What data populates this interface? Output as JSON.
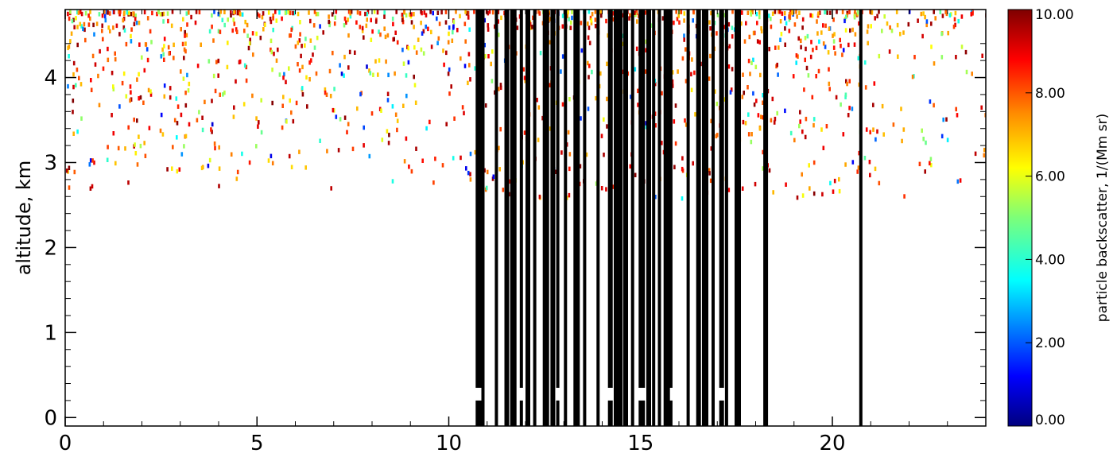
{
  "chart_data": {
    "type": "heatmap",
    "ylabel": "altitude, km",
    "x_ticks": [
      "0",
      "5",
      "10",
      "15",
      "20"
    ],
    "x_tick_values": [
      0,
      5,
      10,
      15,
      20
    ],
    "y_ticks": [
      "0",
      "1",
      "2",
      "3",
      "4"
    ],
    "y_tick_values": [
      0,
      1,
      2,
      3,
      4
    ],
    "xlim": [
      0,
      24
    ],
    "ylim": [
      -0.1,
      4.8
    ],
    "colorbar": {
      "label": "particle backscatter, 1/(Mm sr)",
      "range": [
        0,
        10
      ],
      "tick_values": [
        0,
        2,
        4,
        6,
        8,
        10
      ],
      "tick_labels": [
        "0.00",
        "2.00",
        "4.00",
        "6.00",
        "8.00",
        "10.00"
      ],
      "colormap": "rainbow (dark blue → blue → cyan → green → yellow → orange → red → dark red)"
    },
    "masked_columns_color": "#000000",
    "masked_columns_x": [
      10.7,
      10.85,
      11.2,
      11.45,
      11.6,
      11.85,
      12.0,
      12.2,
      12.45,
      12.65,
      12.8,
      13.0,
      13.25,
      13.5,
      13.85,
      14.15,
      14.3,
      14.45,
      14.55,
      14.75,
      14.95,
      15.15,
      15.3,
      15.45,
      15.6,
      15.75,
      16.2,
      16.45,
      16.6,
      16.85,
      17.05,
      17.2,
      17.45,
      18.2,
      20.7
    ],
    "notes": "Sparse backscatter returns concentrated above ~2.8 km; values mostly 6-10 with occasional low (blue/cyan) values; black vertical bands (masked columns) between ~10.7 and ~17.5 h and at ~18.2 and ~20.7 h."
  }
}
